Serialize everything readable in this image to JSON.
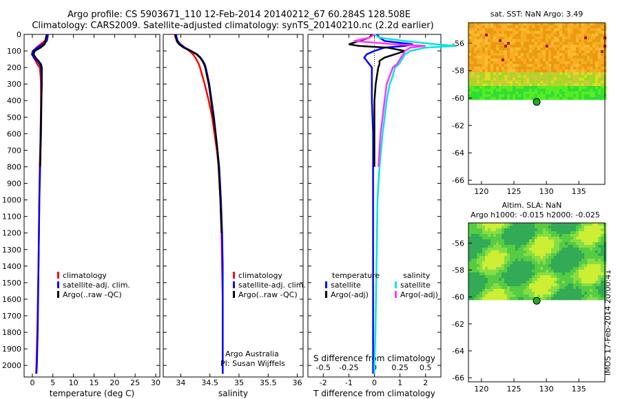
{
  "header": {
    "line1": "Argo profile: CS 5903671_110 12-Feb-2014 20140212_67 60.284S 128.508E",
    "line2": "Climatology: CARS2009. Satellite-adjusted climatology: synTS_20140210.nc (2.2d earlier)"
  },
  "side_stamp": "IMOS 17-Feb-2014 20:00:41",
  "colors": {
    "clim": "#ff0000",
    "sat": "#0000ff",
    "argo": "#000000",
    "sal_sat": "#00e5e5",
    "sal_argo": "#ff33ff"
  },
  "chart_data": [
    {
      "id": "temperature",
      "type": "line",
      "xlabel": "temperature (deg C)",
      "ylabel": "",
      "xlim": [
        -2,
        31
      ],
      "ylim": [
        2070,
        0
      ],
      "xticks": [
        0,
        5,
        10,
        15,
        20,
        25,
        30
      ],
      "yticks": [
        0,
        100,
        200,
        300,
        400,
        500,
        600,
        700,
        800,
        900,
        1000,
        1100,
        1200,
        1300,
        1400,
        1500,
        1600,
        1700,
        1800,
        1900,
        2000
      ],
      "legend": {
        "position": "lower-middle",
        "entries": [
          "climatology",
          "satellite-adj. clim.",
          "Argo(..raw -QC)"
        ]
      },
      "depth": [
        0,
        20,
        40,
        60,
        80,
        100,
        120,
        140,
        160,
        180,
        200,
        250,
        300,
        400,
        600,
        800,
        1000,
        1400,
        1800,
        2000,
        2050
      ],
      "series": [
        {
          "key": "clim",
          "name": "climatology",
          "values": [
            3.6,
            3.5,
            3.0,
            2.0,
            1.0,
            0.2,
            0.0,
            0.3,
            0.8,
            1.2,
            1.8,
            2.0,
            2.1,
            2.1,
            2.0,
            1.8,
            1.7,
            1.5,
            1.2,
            1.0,
            0.9
          ]
        },
        {
          "key": "sat",
          "name": "satellite-adj. clim.",
          "values": [
            3.8,
            3.7,
            3.5,
            2.6,
            1.2,
            0.1,
            -0.1,
            0.4,
            1.2,
            1.8,
            2.1,
            2.2,
            2.2,
            2.2,
            2.0,
            1.9,
            1.7,
            1.5,
            1.3,
            1.1,
            1.0
          ]
        },
        {
          "key": "argo",
          "name": "Argo(..raw -QC)",
          "values": [
            3.5,
            3.3,
            3.2,
            3.0,
            2.0,
            0.6,
            0.3,
            0.8,
            1.5,
            2.1,
            2.3,
            2.3,
            2.3,
            2.2,
            2.1,
            1.9,
            null,
            null,
            null,
            null,
            null
          ]
        }
      ]
    },
    {
      "id": "salinity",
      "type": "line",
      "xlabel": "salinity",
      "xlim": [
        33.7,
        36.1
      ],
      "ylim": [
        2070,
        0
      ],
      "xticks": [
        34,
        34.5,
        35,
        35.5,
        36
      ],
      "legend": {
        "position": "lower-middle",
        "entries": [
          "climatology",
          "satellite-adj. clim.",
          "Argo(..raw -QC)"
        ]
      },
      "annotations": [
        "Argo Australia",
        "PI: Susan Wijffels"
      ],
      "depth": [
        0,
        20,
        40,
        60,
        80,
        100,
        120,
        140,
        160,
        180,
        200,
        250,
        300,
        400,
        500,
        600,
        700,
        800,
        1000,
        1200,
        1400,
        1600,
        1800,
        2000,
        2050
      ],
      "series": [
        {
          "key": "clim",
          "name": "climatology",
          "values": [
            33.9,
            33.91,
            33.94,
            34.0,
            34.07,
            34.15,
            34.21,
            34.25,
            34.28,
            34.31,
            34.33,
            34.37,
            34.41,
            34.48,
            34.54,
            34.58,
            34.62,
            34.65,
            34.68,
            34.7,
            34.71,
            34.72,
            34.72,
            34.72,
            34.72
          ]
        },
        {
          "key": "sat",
          "name": "satellite-adj. clim.",
          "values": [
            33.92,
            33.93,
            33.95,
            33.99,
            34.07,
            34.18,
            34.28,
            34.34,
            34.38,
            34.41,
            34.43,
            34.46,
            34.49,
            34.53,
            34.57,
            34.6,
            34.63,
            34.66,
            34.69,
            34.71,
            34.72,
            34.72,
            34.72,
            34.72,
            34.72
          ]
        },
        {
          "key": "argo",
          "name": "Argo(..raw -QC)",
          "values": [
            33.9,
            33.92,
            33.93,
            33.97,
            34.05,
            34.17,
            34.27,
            34.33,
            34.37,
            34.4,
            34.42,
            34.45,
            34.48,
            34.52,
            34.56,
            34.6,
            34.63,
            34.65,
            34.68,
            34.7,
            null,
            null,
            null,
            null,
            null
          ]
        }
      ]
    },
    {
      "id": "difference",
      "type": "line",
      "xlabel": "T difference from climatology",
      "xlabel2": "S difference from climatology",
      "xlim": [
        -2.6,
        2.6
      ],
      "ylim": [
        2070,
        0
      ],
      "xticks": [
        -2,
        -1,
        0,
        1,
        2
      ],
      "xticks2_labels": [
        "-0.5",
        "-0.25",
        "0",
        "0.25",
        "0.5"
      ],
      "xticks2_values": [
        -0.5,
        -0.25,
        0,
        0.25,
        0.5
      ],
      "legend": {
        "position": "lower",
        "headers": [
          "temperature",
          "salinity"
        ],
        "entries": [
          "satellite",
          "Argo(-adj)",
          "satellite",
          "Argo(-adj)"
        ]
      },
      "depth": [
        0,
        20,
        40,
        60,
        70,
        80,
        100,
        120,
        140,
        160,
        180,
        200,
        250,
        300,
        400,
        600,
        800,
        1000,
        1400,
        1800,
        2000,
        2050
      ],
      "series": [
        {
          "key": "sat",
          "name": "satellite",
          "values": [
            0.1,
            0.2,
            0.4,
            1.5,
            1.2,
            0.4,
            0.0,
            -0.3,
            -0.4,
            -0.3,
            -0.2,
            -0.1,
            -0.1,
            -0.1,
            -0.1,
            -0.05,
            -0.05,
            -0.05,
            -0.05,
            -0.05,
            -0.05,
            -0.05
          ]
        },
        {
          "key": "argo",
          "name": "Argo(-adj)",
          "values": [
            -0.1,
            -0.2,
            -0.6,
            -1.0,
            -0.6,
            0.5,
            1.2,
            0.8,
            0.4,
            0.2,
            0.2,
            0.15,
            0.1,
            0.05,
            0.0,
            0.0,
            0.0,
            null,
            null,
            null,
            null,
            null
          ]
        },
        {
          "key": "sal_sat",
          "name": "satellite",
          "values": [
            0.0,
            0.05,
            0.3,
            0.6,
            0.8,
            0.5,
            0.35,
            0.3,
            0.28,
            0.26,
            0.24,
            0.2,
            0.18,
            0.15,
            0.12,
            0.08,
            0.05,
            0.03,
            0.02,
            0.01,
            0.0,
            0.0
          ]
        },
        {
          "key": "sal_argo",
          "name": "Argo(-adj)",
          "values": [
            0.0,
            -0.05,
            -0.2,
            0.2,
            0.5,
            0.35,
            0.3,
            0.28,
            0.26,
            0.24,
            0.22,
            0.18,
            0.15,
            0.12,
            0.1,
            0.06,
            0.04,
            null,
            null,
            null,
            null,
            null
          ]
        }
      ]
    },
    {
      "id": "sst_map",
      "type": "heatmap",
      "title": "sat. SST: NaN Argo: 3.49",
      "xlim": [
        118,
        139
      ],
      "ylim": [
        -66.3,
        -54.5
      ],
      "xticks": [
        120,
        125,
        130,
        135
      ],
      "yticks": [
        -56,
        -58,
        -60,
        -62,
        -64,
        -66
      ],
      "float_position": [
        128.508,
        -60.284
      ]
    },
    {
      "id": "sla_map",
      "type": "heatmap",
      "title": "Altim. SLA: NaN",
      "subtitle": "Argo h1000: -0.015 h2000: -0.025",
      "xlim": [
        118,
        139
      ],
      "ylim": [
        -66.3,
        -54.5
      ],
      "xticks": [
        120,
        125,
        130,
        135
      ],
      "yticks": [
        -56,
        -58,
        -60,
        -62,
        -64,
        -66
      ],
      "float_position": [
        128.508,
        -60.284
      ]
    }
  ]
}
